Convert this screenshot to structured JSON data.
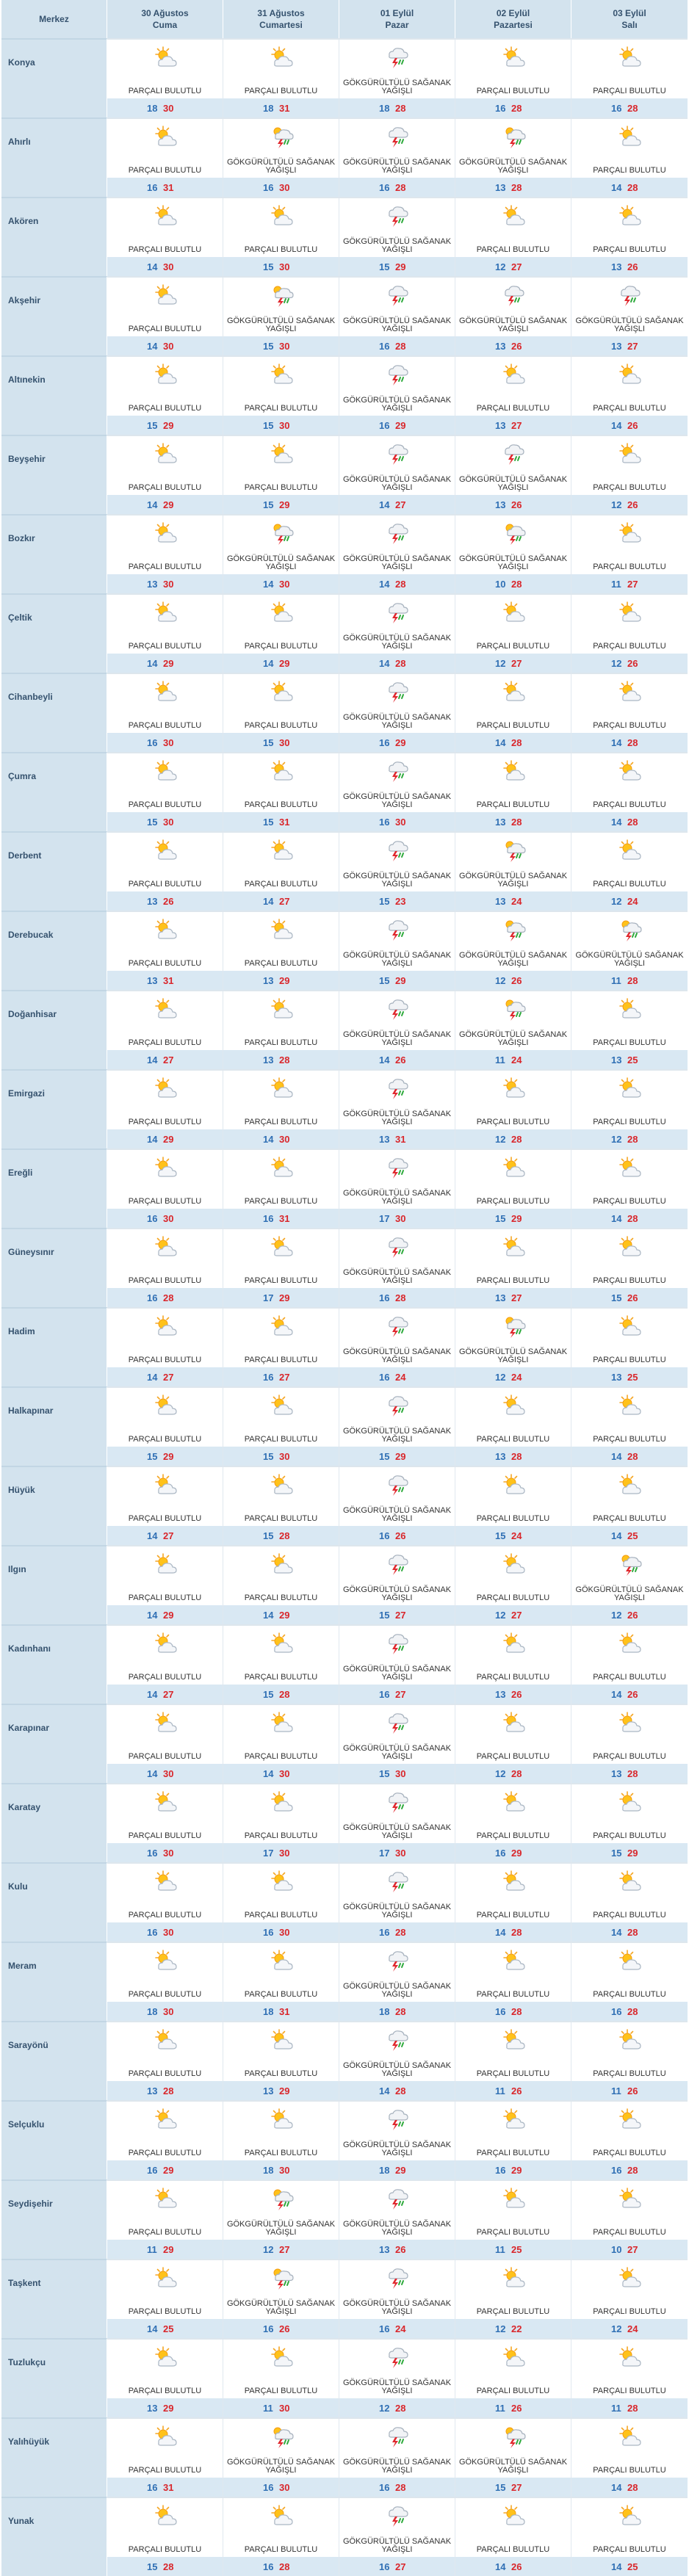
{
  "header": {
    "center_label": "Merkez",
    "days": [
      {
        "date": "30 Ağustos",
        "name": "Cuma"
      },
      {
        "date": "31 Ağustos",
        "name": "Cumartesi"
      },
      {
        "date": "01 Eylül",
        "name": "Pazar"
      },
      {
        "date": "02 Eylül",
        "name": "Pazartesi"
      },
      {
        "date": "03 Eylül",
        "name": "Salı"
      }
    ]
  },
  "conditions": {
    "pb": {
      "text": "PARÇALI BULUTLU",
      "icon": "partly-cloudy-icon"
    },
    "gs": {
      "text": "GÖKGÜRÜLTÜLÜ SAĞANAK YAĞIŞLI",
      "icon": "thunderstorm-icon"
    },
    "gsb": {
      "text": "GÖKGÜRÜLTÜLÜ SAĞANAK YAĞIŞLI",
      "icon": "thunderstorm-sun-icon"
    }
  },
  "colors": {
    "low": "#2f6fb4",
    "high": "#d9262b",
    "header_bg": "#d3e3ee",
    "temp_bar_bg": "#d9e8f3"
  },
  "rows": [
    {
      "city": "Konya",
      "days": [
        {
          "c": "pb",
          "lo": "18",
          "hi": "30"
        },
        {
          "c": "pb",
          "lo": "18",
          "hi": "31"
        },
        {
          "c": "gs",
          "lo": "18",
          "hi": "28"
        },
        {
          "c": "pb",
          "lo": "16",
          "hi": "28"
        },
        {
          "c": "pb",
          "lo": "16",
          "hi": "28"
        }
      ]
    },
    {
      "city": "Ahırlı",
      "days": [
        {
          "c": "pb",
          "lo": "16",
          "hi": "31"
        },
        {
          "c": "gsb",
          "lo": "16",
          "hi": "30"
        },
        {
          "c": "gs",
          "lo": "16",
          "hi": "28"
        },
        {
          "c": "gsb",
          "lo": "13",
          "hi": "28"
        },
        {
          "c": "pb",
          "lo": "14",
          "hi": "28"
        }
      ]
    },
    {
      "city": "Akören",
      "days": [
        {
          "c": "pb",
          "lo": "14",
          "hi": "30"
        },
        {
          "c": "pb",
          "lo": "15",
          "hi": "30"
        },
        {
          "c": "gs",
          "lo": "15",
          "hi": "29"
        },
        {
          "c": "pb",
          "lo": "12",
          "hi": "27"
        },
        {
          "c": "pb",
          "lo": "13",
          "hi": "26"
        }
      ]
    },
    {
      "city": "Akşehir",
      "days": [
        {
          "c": "pb",
          "lo": "14",
          "hi": "30"
        },
        {
          "c": "gsb",
          "lo": "15",
          "hi": "30"
        },
        {
          "c": "gs",
          "lo": "16",
          "hi": "28"
        },
        {
          "c": "gs",
          "lo": "13",
          "hi": "26"
        },
        {
          "c": "gs",
          "lo": "13",
          "hi": "27"
        }
      ]
    },
    {
      "city": "Altınekin",
      "days": [
        {
          "c": "pb",
          "lo": "15",
          "hi": "29"
        },
        {
          "c": "pb",
          "lo": "15",
          "hi": "30"
        },
        {
          "c": "gs",
          "lo": "16",
          "hi": "29"
        },
        {
          "c": "pb",
          "lo": "13",
          "hi": "27"
        },
        {
          "c": "pb",
          "lo": "14",
          "hi": "26"
        }
      ]
    },
    {
      "city": "Beyşehir",
      "days": [
        {
          "c": "pb",
          "lo": "14",
          "hi": "29"
        },
        {
          "c": "pb",
          "lo": "15",
          "hi": "29"
        },
        {
          "c": "gs",
          "lo": "14",
          "hi": "27"
        },
        {
          "c": "gs",
          "lo": "13",
          "hi": "26"
        },
        {
          "c": "pb",
          "lo": "12",
          "hi": "26"
        }
      ]
    },
    {
      "city": "Bozkır",
      "days": [
        {
          "c": "pb",
          "lo": "13",
          "hi": "30"
        },
        {
          "c": "gsb",
          "lo": "14",
          "hi": "30"
        },
        {
          "c": "gs",
          "lo": "14",
          "hi": "28"
        },
        {
          "c": "gsb",
          "lo": "10",
          "hi": "28"
        },
        {
          "c": "pb",
          "lo": "11",
          "hi": "27"
        }
      ]
    },
    {
      "city": "Çeltik",
      "days": [
        {
          "c": "pb",
          "lo": "14",
          "hi": "29"
        },
        {
          "c": "pb",
          "lo": "14",
          "hi": "29"
        },
        {
          "c": "gs",
          "lo": "14",
          "hi": "28"
        },
        {
          "c": "pb",
          "lo": "12",
          "hi": "27"
        },
        {
          "c": "pb",
          "lo": "12",
          "hi": "26"
        }
      ]
    },
    {
      "city": "Cihanbeyli",
      "days": [
        {
          "c": "pb",
          "lo": "16",
          "hi": "30"
        },
        {
          "c": "pb",
          "lo": "15",
          "hi": "30"
        },
        {
          "c": "gs",
          "lo": "16",
          "hi": "29"
        },
        {
          "c": "pb",
          "lo": "14",
          "hi": "28"
        },
        {
          "c": "pb",
          "lo": "14",
          "hi": "28"
        }
      ]
    },
    {
      "city": "Çumra",
      "days": [
        {
          "c": "pb",
          "lo": "15",
          "hi": "30"
        },
        {
          "c": "pb",
          "lo": "15",
          "hi": "31"
        },
        {
          "c": "gs",
          "lo": "16",
          "hi": "30"
        },
        {
          "c": "pb",
          "lo": "13",
          "hi": "28"
        },
        {
          "c": "pb",
          "lo": "14",
          "hi": "28"
        }
      ]
    },
    {
      "city": "Derbent",
      "days": [
        {
          "c": "pb",
          "lo": "13",
          "hi": "26"
        },
        {
          "c": "pb",
          "lo": "14",
          "hi": "27"
        },
        {
          "c": "gs",
          "lo": "15",
          "hi": "23"
        },
        {
          "c": "gsb",
          "lo": "13",
          "hi": "24"
        },
        {
          "c": "pb",
          "lo": "12",
          "hi": "24"
        }
      ]
    },
    {
      "city": "Derebucak",
      "days": [
        {
          "c": "pb",
          "lo": "13",
          "hi": "31"
        },
        {
          "c": "pb",
          "lo": "13",
          "hi": "29"
        },
        {
          "c": "gs",
          "lo": "15",
          "hi": "29"
        },
        {
          "c": "gsb",
          "lo": "12",
          "hi": "26"
        },
        {
          "c": "gsb",
          "lo": "11",
          "hi": "28"
        }
      ]
    },
    {
      "city": "Doğanhisar",
      "days": [
        {
          "c": "pb",
          "lo": "14",
          "hi": "27"
        },
        {
          "c": "pb",
          "lo": "13",
          "hi": "28"
        },
        {
          "c": "gs",
          "lo": "14",
          "hi": "26"
        },
        {
          "c": "gsb",
          "lo": "11",
          "hi": "24"
        },
        {
          "c": "pb",
          "lo": "13",
          "hi": "25"
        }
      ]
    },
    {
      "city": "Emirgazi",
      "days": [
        {
          "c": "pb",
          "lo": "14",
          "hi": "29"
        },
        {
          "c": "pb",
          "lo": "14",
          "hi": "30"
        },
        {
          "c": "gs",
          "lo": "13",
          "hi": "31"
        },
        {
          "c": "pb",
          "lo": "12",
          "hi": "28"
        },
        {
          "c": "pb",
          "lo": "12",
          "hi": "28"
        }
      ]
    },
    {
      "city": "Ereğli",
      "days": [
        {
          "c": "pb",
          "lo": "16",
          "hi": "30"
        },
        {
          "c": "pb",
          "lo": "16",
          "hi": "31"
        },
        {
          "c": "gs",
          "lo": "17",
          "hi": "30"
        },
        {
          "c": "pb",
          "lo": "15",
          "hi": "29"
        },
        {
          "c": "pb",
          "lo": "14",
          "hi": "28"
        }
      ]
    },
    {
      "city": "Güneysınır",
      "days": [
        {
          "c": "pb",
          "lo": "16",
          "hi": "28"
        },
        {
          "c": "pb",
          "lo": "17",
          "hi": "29"
        },
        {
          "c": "gs",
          "lo": "16",
          "hi": "28"
        },
        {
          "c": "pb",
          "lo": "13",
          "hi": "27"
        },
        {
          "c": "pb",
          "lo": "15",
          "hi": "26"
        }
      ]
    },
    {
      "city": "Hadim",
      "days": [
        {
          "c": "pb",
          "lo": "14",
          "hi": "27"
        },
        {
          "c": "pb",
          "lo": "16",
          "hi": "27"
        },
        {
          "c": "gs",
          "lo": "16",
          "hi": "24"
        },
        {
          "c": "gsb",
          "lo": "12",
          "hi": "24"
        },
        {
          "c": "pb",
          "lo": "13",
          "hi": "25"
        }
      ]
    },
    {
      "city": "Halkapınar",
      "days": [
        {
          "c": "pb",
          "lo": "15",
          "hi": "29"
        },
        {
          "c": "pb",
          "lo": "15",
          "hi": "30"
        },
        {
          "c": "gs",
          "lo": "15",
          "hi": "29"
        },
        {
          "c": "pb",
          "lo": "13",
          "hi": "28"
        },
        {
          "c": "pb",
          "lo": "14",
          "hi": "28"
        }
      ]
    },
    {
      "city": "Hüyük",
      "days": [
        {
          "c": "pb",
          "lo": "14",
          "hi": "27"
        },
        {
          "c": "pb",
          "lo": "15",
          "hi": "28"
        },
        {
          "c": "gs",
          "lo": "16",
          "hi": "26"
        },
        {
          "c": "pb",
          "lo": "15",
          "hi": "24"
        },
        {
          "c": "pb",
          "lo": "14",
          "hi": "25"
        }
      ]
    },
    {
      "city": "Ilgın",
      "days": [
        {
          "c": "pb",
          "lo": "14",
          "hi": "29"
        },
        {
          "c": "pb",
          "lo": "14",
          "hi": "29"
        },
        {
          "c": "gs",
          "lo": "15",
          "hi": "27"
        },
        {
          "c": "pb",
          "lo": "12",
          "hi": "27"
        },
        {
          "c": "gsb",
          "lo": "12",
          "hi": "26"
        }
      ]
    },
    {
      "city": "Kadınhanı",
      "days": [
        {
          "c": "pb",
          "lo": "14",
          "hi": "27"
        },
        {
          "c": "pb",
          "lo": "15",
          "hi": "28"
        },
        {
          "c": "gs",
          "lo": "16",
          "hi": "27"
        },
        {
          "c": "pb",
          "lo": "13",
          "hi": "26"
        },
        {
          "c": "pb",
          "lo": "14",
          "hi": "26"
        }
      ]
    },
    {
      "city": "Karapınar",
      "days": [
        {
          "c": "pb",
          "lo": "14",
          "hi": "30"
        },
        {
          "c": "pb",
          "lo": "14",
          "hi": "30"
        },
        {
          "c": "gs",
          "lo": "15",
          "hi": "30"
        },
        {
          "c": "pb",
          "lo": "12",
          "hi": "28"
        },
        {
          "c": "pb",
          "lo": "13",
          "hi": "28"
        }
      ]
    },
    {
      "city": "Karatay",
      "days": [
        {
          "c": "pb",
          "lo": "16",
          "hi": "30"
        },
        {
          "c": "pb",
          "lo": "17",
          "hi": "30"
        },
        {
          "c": "gs",
          "lo": "17",
          "hi": "30"
        },
        {
          "c": "pb",
          "lo": "16",
          "hi": "29"
        },
        {
          "c": "pb",
          "lo": "15",
          "hi": "29"
        }
      ]
    },
    {
      "city": "Kulu",
      "days": [
        {
          "c": "pb",
          "lo": "16",
          "hi": "30"
        },
        {
          "c": "pb",
          "lo": "16",
          "hi": "30"
        },
        {
          "c": "gs",
          "lo": "16",
          "hi": "28"
        },
        {
          "c": "pb",
          "lo": "14",
          "hi": "28"
        },
        {
          "c": "pb",
          "lo": "14",
          "hi": "28"
        }
      ]
    },
    {
      "city": "Meram",
      "days": [
        {
          "c": "pb",
          "lo": "18",
          "hi": "30"
        },
        {
          "c": "pb",
          "lo": "18",
          "hi": "31"
        },
        {
          "c": "gs",
          "lo": "18",
          "hi": "28"
        },
        {
          "c": "pb",
          "lo": "16",
          "hi": "28"
        },
        {
          "c": "pb",
          "lo": "16",
          "hi": "28"
        }
      ]
    },
    {
      "city": "Sarayönü",
      "days": [
        {
          "c": "pb",
          "lo": "13",
          "hi": "28"
        },
        {
          "c": "pb",
          "lo": "13",
          "hi": "29"
        },
        {
          "c": "gs",
          "lo": "14",
          "hi": "28"
        },
        {
          "c": "pb",
          "lo": "11",
          "hi": "26"
        },
        {
          "c": "pb",
          "lo": "11",
          "hi": "26"
        }
      ]
    },
    {
      "city": "Selçuklu",
      "days": [
        {
          "c": "pb",
          "lo": "16",
          "hi": "29"
        },
        {
          "c": "pb",
          "lo": "18",
          "hi": "30"
        },
        {
          "c": "gs",
          "lo": "18",
          "hi": "29"
        },
        {
          "c": "pb",
          "lo": "16",
          "hi": "29"
        },
        {
          "c": "pb",
          "lo": "16",
          "hi": "28"
        }
      ]
    },
    {
      "city": "Seydişehir",
      "days": [
        {
          "c": "pb",
          "lo": "11",
          "hi": "29"
        },
        {
          "c": "gsb",
          "lo": "12",
          "hi": "27"
        },
        {
          "c": "gs",
          "lo": "13",
          "hi": "26"
        },
        {
          "c": "pb",
          "lo": "11",
          "hi": "25"
        },
        {
          "c": "pb",
          "lo": "10",
          "hi": "27"
        }
      ]
    },
    {
      "city": "Taşkent",
      "days": [
        {
          "c": "pb",
          "lo": "14",
          "hi": "25"
        },
        {
          "c": "gsb",
          "lo": "16",
          "hi": "26"
        },
        {
          "c": "gs",
          "lo": "16",
          "hi": "24"
        },
        {
          "c": "pb",
          "lo": "12",
          "hi": "22"
        },
        {
          "c": "pb",
          "lo": "12",
          "hi": "24"
        }
      ]
    },
    {
      "city": "Tuzlukçu",
      "days": [
        {
          "c": "pb",
          "lo": "13",
          "hi": "29"
        },
        {
          "c": "pb",
          "lo": "11",
          "hi": "30"
        },
        {
          "c": "gs",
          "lo": "12",
          "hi": "28"
        },
        {
          "c": "pb",
          "lo": "11",
          "hi": "26"
        },
        {
          "c": "pb",
          "lo": "11",
          "hi": "28"
        }
      ]
    },
    {
      "city": "Yalıhüyük",
      "days": [
        {
          "c": "pb",
          "lo": "16",
          "hi": "31"
        },
        {
          "c": "gsb",
          "lo": "16",
          "hi": "30"
        },
        {
          "c": "gs",
          "lo": "16",
          "hi": "28"
        },
        {
          "c": "gsb",
          "lo": "15",
          "hi": "27"
        },
        {
          "c": "pb",
          "lo": "14",
          "hi": "28"
        }
      ]
    },
    {
      "city": "Yunak",
      "days": [
        {
          "c": "pb",
          "lo": "15",
          "hi": "28"
        },
        {
          "c": "pb",
          "lo": "16",
          "hi": "28"
        },
        {
          "c": "gs",
          "lo": "16",
          "hi": "27"
        },
        {
          "c": "pb",
          "lo": "14",
          "hi": "26"
        },
        {
          "c": "pb",
          "lo": "14",
          "hi": "25"
        }
      ]
    }
  ]
}
